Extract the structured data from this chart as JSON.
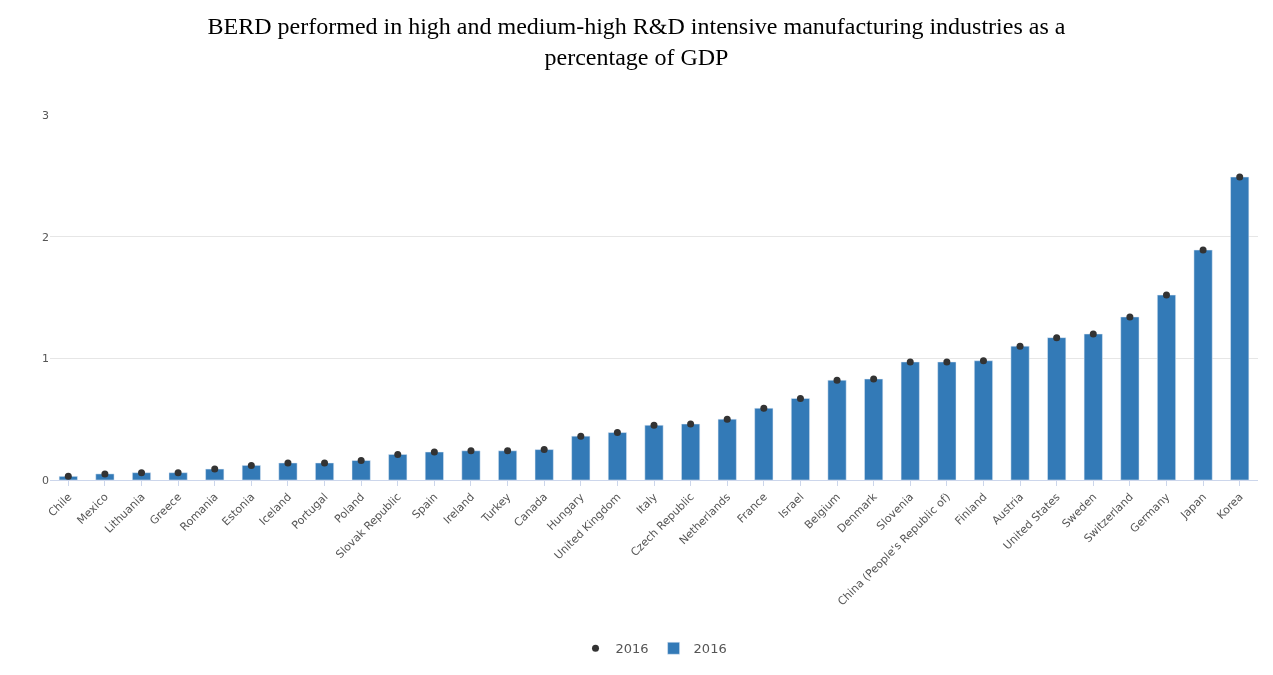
{
  "chart_data": {
    "type": "bar",
    "title": "BERD performed in high and medium-high R&D intensive manufacturing industries as a percentage of GDP",
    "categories": [
      "Chile",
      "Mexico",
      "Lithuania",
      "Greece",
      "Romania",
      "Estonia",
      "Iceland",
      "Portugal",
      "Poland",
      "Slovak Republic",
      "Spain",
      "Ireland",
      "Turkey",
      "Canada",
      "Hungary",
      "United Kingdom",
      "Italy",
      "Czech Republic",
      "Netherlands",
      "France",
      "Israel",
      "Belgium",
      "Denmark",
      "Slovenia",
      "China (People's Republic of)",
      "Finland",
      "Austria",
      "United States",
      "Sweden",
      "Switzerland",
      "Germany",
      "Japan",
      "Korea"
    ],
    "series": [
      {
        "name": "2016",
        "type": "scatter",
        "color": "#333333",
        "marker": "circle",
        "values": [
          0.03,
          0.05,
          0.06,
          0.06,
          0.09,
          0.12,
          0.14,
          0.14,
          0.16,
          0.21,
          0.23,
          0.24,
          0.24,
          0.25,
          0.36,
          0.39,
          0.45,
          0.46,
          0.5,
          0.59,
          0.67,
          0.82,
          0.83,
          0.97,
          0.97,
          0.98,
          1.1,
          1.17,
          1.2,
          1.34,
          1.52,
          1.89,
          2.49
        ]
      },
      {
        "name": "2016",
        "color": "#337ab7",
        "values": [
          0.03,
          0.05,
          0.06,
          0.06,
          0.09,
          0.12,
          0.14,
          0.14,
          0.16,
          0.21,
          0.23,
          0.24,
          0.24,
          0.25,
          0.36,
          0.39,
          0.45,
          0.46,
          0.5,
          0.59,
          0.67,
          0.82,
          0.83,
          0.97,
          0.97,
          0.98,
          1.1,
          1.17,
          1.2,
          1.34,
          1.52,
          1.89,
          2.49
        ]
      }
    ],
    "ylim": [
      0,
      3
    ],
    "yticks": [
      0,
      1,
      2,
      3
    ],
    "grid": "y",
    "legend": "bottom"
  }
}
